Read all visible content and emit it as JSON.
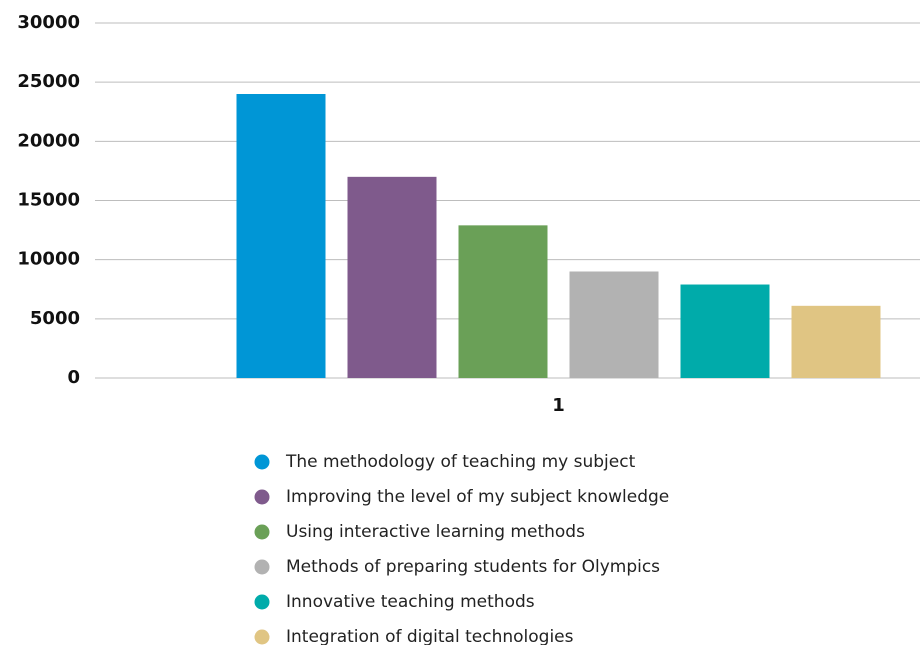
{
  "chart_data": {
    "type": "bar",
    "categories": [
      "1"
    ],
    "series": [
      {
        "name": "The methodology of teaching my subject",
        "color": "#0096d6",
        "values": [
          24000
        ]
      },
      {
        "name": "Improving the level of my subject knowledge",
        "color": "#7f5a8c",
        "values": [
          17000
        ]
      },
      {
        "name": "Using interactive learning methods",
        "color": "#6aa057",
        "values": [
          12900
        ]
      },
      {
        "name": "Methods of preparing students for Olympics",
        "color": "#b2b2b2",
        "values": [
          9000
        ]
      },
      {
        "name": "Innovative teaching methods",
        "color": "#00abaa",
        "values": [
          7900
        ]
      },
      {
        "name": "Integration of digital technologies",
        "color": "#e0c583",
        "values": [
          6100
        ]
      }
    ],
    "ylim": [
      0,
      30000
    ],
    "yticks": [
      0,
      5000,
      10000,
      15000,
      20000,
      25000,
      30000
    ],
    "grid": true,
    "legend": "bottom"
  }
}
